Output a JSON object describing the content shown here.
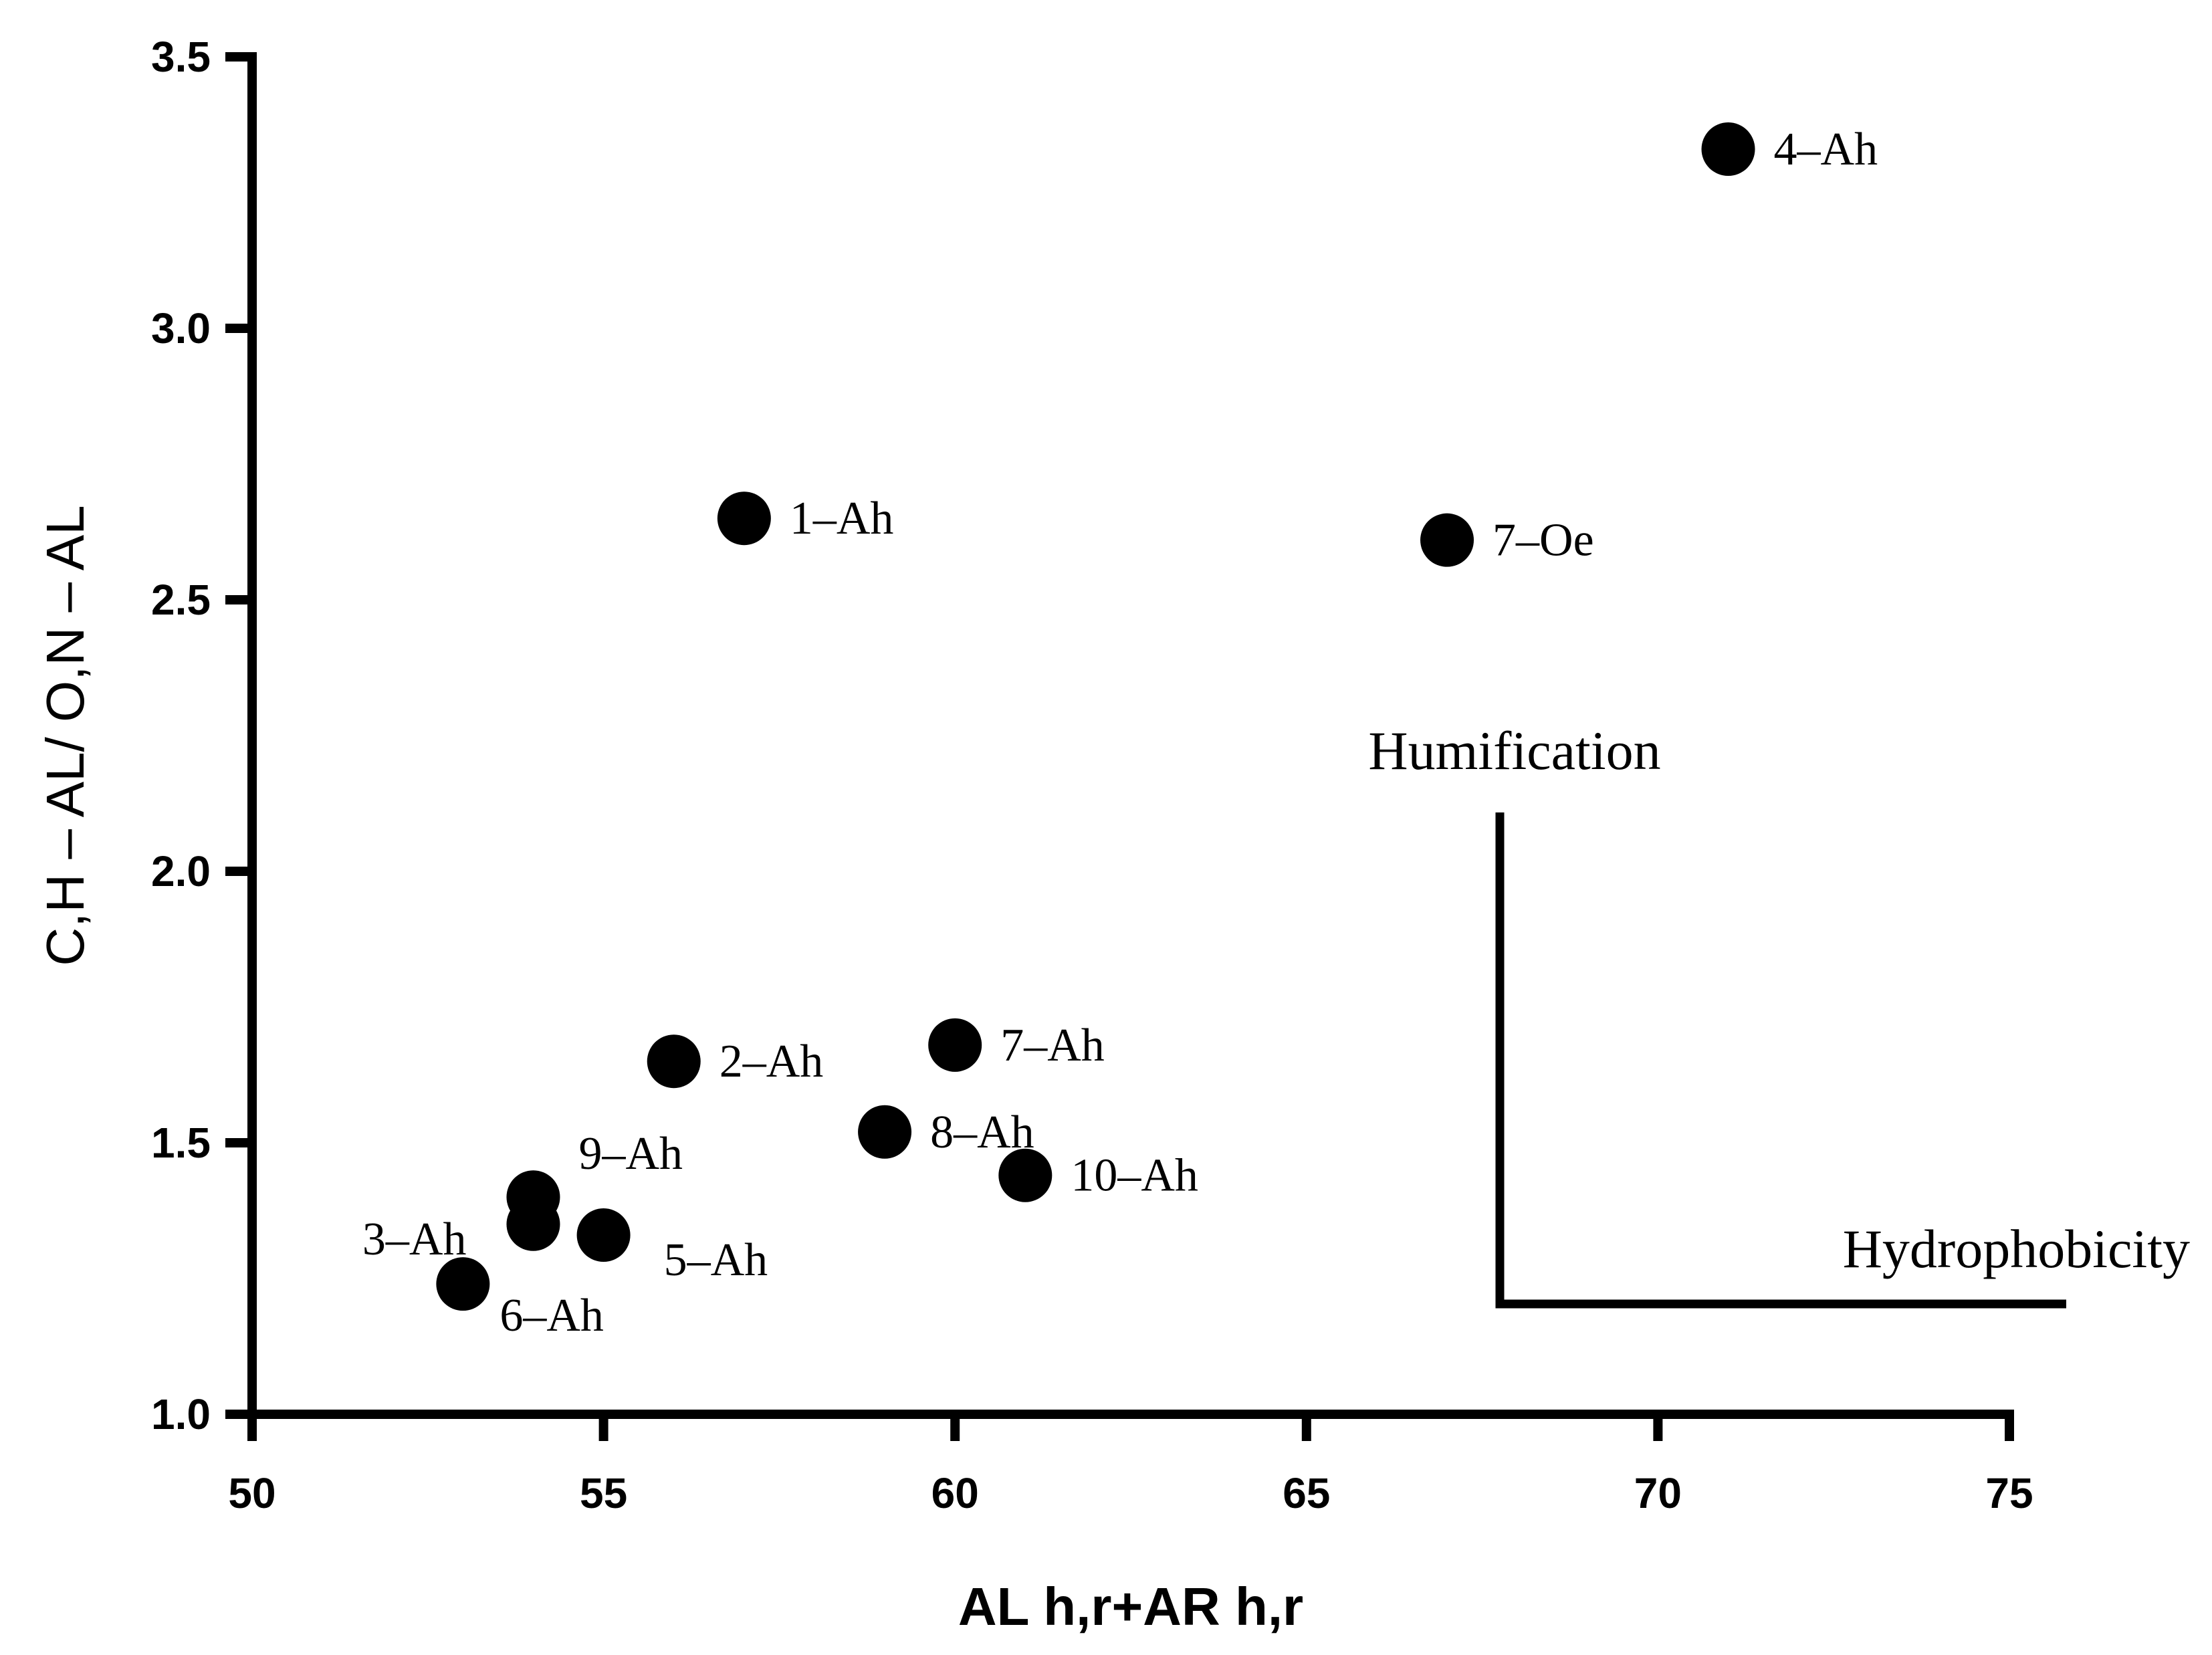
{
  "chart_data": {
    "type": "scatter",
    "title": "",
    "xlabel": "AL h,r+AR h,r",
    "ylabel": "C,H – AL/ O,N – AL",
    "xlim": [
      50,
      75
    ],
    "ylim": [
      1.0,
      3.5
    ],
    "xticks": [
      "50",
      "55",
      "60",
      "65",
      "70",
      "75"
    ],
    "yticks": [
      "1.0",
      "1.5",
      "2.0",
      "2.5",
      "3.0",
      "3.5"
    ],
    "grid": false,
    "legend": "none",
    "marker_color": "#000000",
    "points": [
      {
        "label": "1–Ah",
        "x": 57,
        "y": 2.65
      },
      {
        "label": "2–Ah",
        "x": 56,
        "y": 1.65
      },
      {
        "label": "3–Ah",
        "x": 54,
        "y": 1.35
      },
      {
        "label": "4–Ah",
        "x": 71,
        "y": 3.33
      },
      {
        "label": "5–Ah",
        "x": 55,
        "y": 1.33
      },
      {
        "label": "6–Ah",
        "x": 53,
        "y": 1.24
      },
      {
        "label": "7–Ah",
        "x": 60,
        "y": 1.68
      },
      {
        "label": "7–Oe",
        "x": 67,
        "y": 2.61
      },
      {
        "label": "8–Ah",
        "x": 59,
        "y": 1.52
      },
      {
        "label": "9–Ah",
        "x": 54,
        "y": 1.4
      },
      {
        "label": "10–Ah",
        "x": 61,
        "y": 1.44
      }
    ],
    "annotations": {
      "vertical": "Humification",
      "horizontal": "Hydrophobicity"
    }
  }
}
